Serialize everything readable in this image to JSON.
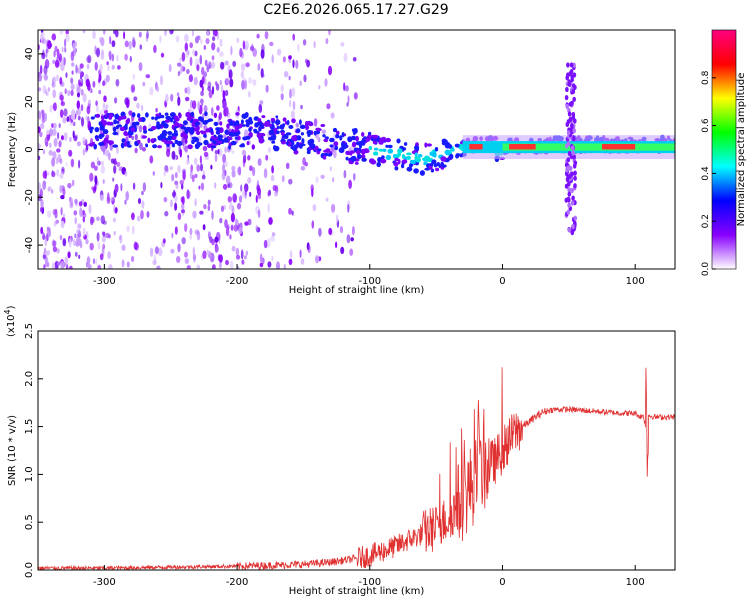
{
  "title": "C2E6.2026.065.17.27.G29",
  "spectrogram": {
    "ylabel": "Frequency (Hz)",
    "xlabel": "Height of straight line (km)",
    "xlim": [
      -350,
      130
    ],
    "ylim": [
      -50,
      50
    ],
    "xticks": [
      "-300",
      "-200",
      "-100",
      "0",
      "100"
    ],
    "yticks": [
      "-40",
      "-20",
      "0",
      "20",
      "40"
    ],
    "colorbar": {
      "label": "Normalized spectral amplitude",
      "range": [
        0,
        1
      ],
      "ticks": [
        "0.0",
        "0.2",
        "0.4",
        "0.6",
        "0.8"
      ],
      "colors": [
        "#ffffff",
        "#8800ff",
        "#0000ff",
        "#00ffff",
        "#00ff00",
        "#ffff00",
        "#ff0000",
        "#ff0080"
      ]
    }
  },
  "chart_data": {
    "type": "line",
    "title": "C2E6.2026.065.17.27.G29",
    "xlabel": "Height of straight line (km)",
    "ylabel": "SNR (10 * v/v)",
    "exponent_label": "(x10",
    "exponent_sup": "4",
    "exponent_close": ")",
    "xlim": [
      -350,
      130
    ],
    "ylim": [
      0,
      2.5
    ],
    "y_scale": 10000,
    "xticks": [
      "-300",
      "-200",
      "-100",
      "0",
      "100"
    ],
    "yticks": [
      "0.0",
      "0.5",
      "1.0",
      "1.5",
      "2.0",
      "2.5"
    ],
    "series": [
      {
        "color": "#e03030",
        "x": [
          -350,
          -300,
          -250,
          -200,
          -170,
          -150,
          -130,
          -110,
          -100,
          -90,
          -80,
          -70,
          -60,
          -50,
          -40,
          -35,
          -30,
          -25,
          -20,
          -15,
          -10,
          -5,
          0,
          5,
          10,
          15,
          20,
          25,
          30,
          35,
          40,
          50,
          60,
          70,
          80,
          90,
          100,
          104,
          106,
          108,
          110,
          112,
          115,
          120,
          130
        ],
        "y": [
          0.02,
          0.02,
          0.03,
          0.04,
          0.05,
          0.06,
          0.08,
          0.12,
          0.15,
          0.2,
          0.25,
          0.32,
          0.38,
          0.45,
          0.55,
          0.65,
          0.75,
          0.85,
          0.95,
          1.05,
          1.1,
          1.15,
          1.25,
          1.35,
          1.45,
          1.5,
          1.55,
          1.6,
          1.65,
          1.67,
          1.68,
          1.68,
          1.67,
          1.66,
          1.65,
          1.64,
          1.64,
          1.6,
          1.62,
          1.5,
          1.62,
          1.61,
          1.6,
          1.6,
          1.6
        ]
      }
    ]
  }
}
